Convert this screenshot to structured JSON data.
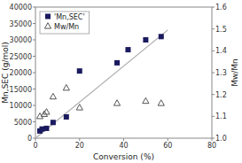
{
  "chart_data": {
    "type": "scatter",
    "xlabel": "Conversion (%)",
    "ylabel": "Mn,SEC (g/mol)",
    "y2label": "Mw/Mn",
    "series": [
      {
        "type": "line",
        "color": "#aaaaaa",
        "x": [
          0,
          60
        ],
        "values": [
          0,
          33000
        ]
      },
      {
        "type": "scatter",
        "name": "'Mn,SEC'",
        "color": "#1a1a5e",
        "marker": "square",
        "x": [
          2,
          3,
          5,
          8,
          14,
          20,
          37,
          42,
          50,
          57
        ],
        "values": [
          2200,
          2800,
          3000,
          4800,
          6500,
          20500,
          23000,
          27000,
          30000,
          31000
        ]
      },
      {
        "type": "scatter",
        "name": "Mw/Mn",
        "color": "#555555",
        "marker": "triangle",
        "axis": "y2",
        "x": [
          2,
          4,
          5,
          8,
          14,
          20,
          37,
          50,
          57
        ],
        "values": [
          1.1,
          1.11,
          1.12,
          1.19,
          1.23,
          1.14,
          1.16,
          1.17,
          1.16
        ]
      }
    ],
    "xlim": [
      0,
      80
    ],
    "xticks": [
      0,
      20,
      40,
      60,
      80
    ],
    "ylim": [
      0,
      40000
    ],
    "yticks": [
      0,
      5000,
      10000,
      15000,
      20000,
      25000,
      30000,
      35000,
      40000
    ],
    "y2lim": [
      1.0,
      1.6
    ],
    "y2ticks": [
      {
        "value": 1.0,
        "label": "1.0"
      },
      1.1,
      1.2,
      1.3,
      1.4,
      1.5,
      1.6
    ],
    "grid": false,
    "legend": "upper left"
  }
}
